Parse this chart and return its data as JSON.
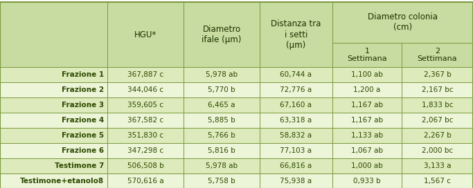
{
  "rows": [
    [
      "Frazione 1",
      "367,887 c",
      "5,978 ab",
      "60,744 a",
      "1,100 ab",
      "2,367 b"
    ],
    [
      "Frazione 2",
      "344,046 c",
      "5,770 b",
      "72,776 a",
      "1,200 a",
      "2,167 bc"
    ],
    [
      "Frazione 3",
      "359,605 c",
      "6,465 a",
      "67,160 a",
      "1,167 ab",
      "1,833 bc"
    ],
    [
      "Frazione 4",
      "367,582 c",
      "5,885 b",
      "63,318 a",
      "1,167 ab",
      "2,067 bc"
    ],
    [
      "Frazione 5",
      "351,830 c",
      "5,766 b",
      "58,832 a",
      "1,133 ab",
      "2,267 b"
    ],
    [
      "Frazione 6",
      "347,298 c",
      "5,816 b",
      "77,103 a",
      "1,067 ab",
      "2,000 bc"
    ],
    [
      "Testimone 7",
      "506,508 b",
      "5,978 ab",
      "66,816 a",
      "1,000 ab",
      "3,133 a"
    ],
    [
      "Testimone+etanolo8",
      "570,616 a",
      "5,758 b",
      "75,938 a",
      "0,933 b",
      "1,567 c"
    ]
  ],
  "col_header_bg": "#c8dba0",
  "row_alt1_bg": "#ddeabb",
  "row_alt2_bg": "#edf5d8",
  "border_color": "#7a9a40",
  "text_color": "#2d4a00",
  "header_text_color": "#1a3300",
  "figwidth": 6.83,
  "figheight": 2.72,
  "dpi": 100
}
